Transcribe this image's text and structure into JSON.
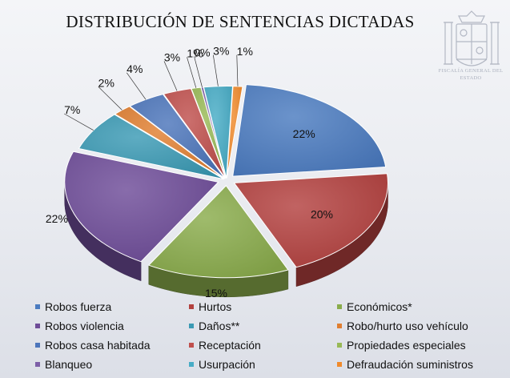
{
  "title": "DISTRIBUCIÓN DE SENTENCIAS DICTADAS",
  "logo": {
    "name": "crest-logo",
    "text": "FISCALÍA GENERAL DEL ESTADO"
  },
  "colors": {
    "Robos fuerza": "#4b7bc0",
    "Hurtos": "#b3413f",
    "Económicos*": "#8aac4c",
    "Robos violencia": "#6e4c98",
    "Daños**": "#3b9ab4",
    "Robo/hurto uso vehículo": "#e07f31",
    "Robos casa habitada": "#4c75bb",
    "Receptación": "#c0504d",
    "Propiedades especiales": "#98b956",
    "Blanqueo": "#7d5fa8",
    "Usurpación": "#47acc6",
    "Defraudación suministros": "#f08a2b"
  },
  "chart_data": {
    "type": "pie",
    "title": "DISTRIBUCIÓN DE SENTENCIAS DICTADAS",
    "three_d": true,
    "exploded": true,
    "categories": [
      "Robos fuerza",
      "Hurtos",
      "Económicos*",
      "Robos violencia",
      "Daños**",
      "Robo/hurto uso vehículo",
      "Robos casa habitada",
      "Receptación",
      "Propiedades especiales",
      "Blanqueo",
      "Usurpación",
      "Defraudación suministros"
    ],
    "values": [
      22,
      20,
      15,
      22,
      7,
      2,
      4,
      3,
      1,
      0,
      3,
      1
    ],
    "data_labels": [
      "22%",
      "20%",
      "15%",
      "22%",
      "7%",
      "2%",
      "4%",
      "3%",
      "1%",
      "0%",
      "3%",
      "1%"
    ],
    "legend": {
      "position": "bottom",
      "rows": [
        [
          "Robos fuerza",
          "Hurtos",
          "Económicos*"
        ],
        [
          "Robos violencia",
          "Daños**",
          "Robo/hurto uso vehículo"
        ],
        [
          "Robos casa habitada",
          "Receptación",
          "Propiedades especiales"
        ],
        [
          "Blanqueo",
          "Usurpación",
          "Defraudación suministros"
        ]
      ]
    }
  }
}
